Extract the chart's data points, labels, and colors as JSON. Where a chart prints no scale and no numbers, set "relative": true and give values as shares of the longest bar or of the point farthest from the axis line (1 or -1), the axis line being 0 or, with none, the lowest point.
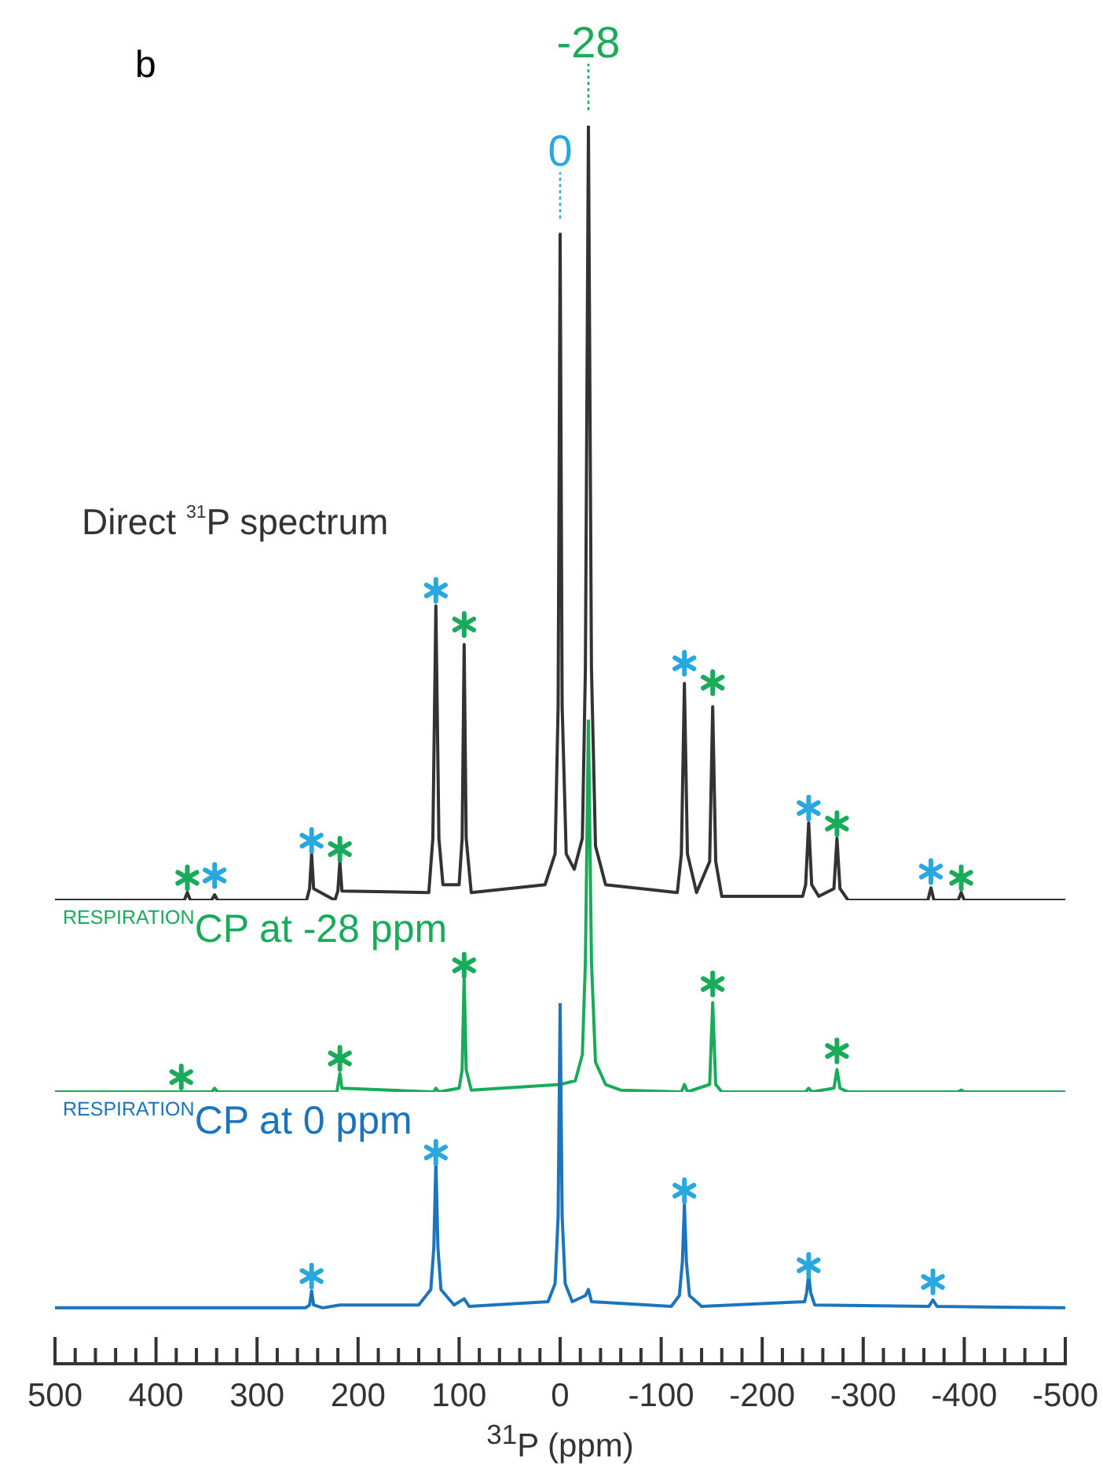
{
  "chart_data": [
    {
      "type": "line",
      "relative": true,
      "xlim": [
        500,
        -500
      ],
      "tick_labels": false,
      "series": [
        {
          "name": "Direct $^{31}$P spectrum",
          "color": "#333333",
          "x": [
            500,
            372,
            369,
            366,
            345,
            342,
            339,
            251,
            248,
            246,
            244,
            223,
            220,
            218,
            216,
            130,
            126,
            123,
            120,
            116,
            100,
            97,
            95,
            93,
            88,
            15,
            5,
            2,
            0,
            -2,
            -6,
            -14,
            -22,
            -25,
            -28,
            -31,
            -35,
            -45,
            -116,
            -120,
            -123,
            -126,
            -135,
            -148,
            -151,
            -154,
            -160,
            -240,
            -243,
            -246,
            -249,
            -256,
            -271,
            -274,
            -277,
            -285,
            -364,
            -367,
            -370,
            -394,
            -397,
            -400,
            -500
          ],
          "values": [
            0,
            0,
            0.01,
            0,
            0,
            0.007,
            0,
            0,
            0.015,
            0.06,
            0.015,
            0,
            0.012,
            0.05,
            0.012,
            0.01,
            0.08,
            0.38,
            0.08,
            0.02,
            0.02,
            0.08,
            0.33,
            0.08,
            0.01,
            0.02,
            0.06,
            0.25,
            0.86,
            0.25,
            0.06,
            0.04,
            0.08,
            0.3,
            1,
            0.3,
            0.07,
            0.02,
            0.01,
            0.06,
            0.28,
            0.06,
            0.01,
            0.05,
            0.25,
            0.05,
            0.005,
            0.005,
            0.02,
            0.1,
            0.02,
            0.005,
            0.015,
            0.08,
            0.015,
            0,
            0,
            0.016,
            0,
            0,
            0.01,
            0,
            0
          ]
        },
        {
          "type": "scatter",
          "marker": "cross",
          "color": "#29a8e0",
          "x": [
            342,
            246,
            123,
            -123,
            -246,
            -367
          ],
          "values": [
            0.032,
            0.077,
            0.4,
            0.306,
            0.119,
            0.037
          ]
        },
        {
          "type": "scatter",
          "marker": "cross",
          "color": "#1aab5a",
          "x": [
            369,
            218,
            95,
            -151,
            -274,
            -397
          ],
          "values": [
            0.029,
            0.066,
            0.356,
            0.281,
            0.099,
            0.029
          ]
        }
      ],
      "ref_lines": [
        {
          "axis": "x",
          "value": 0,
          "label": "0",
          "color": "#29a8e0",
          "line_style": "dotted"
        },
        {
          "axis": "x",
          "value": -28,
          "label": "-28",
          "color": "#1aab5a",
          "line_style": "dotted"
        }
      ],
      "annotations": [
        "b"
      ]
    },
    {
      "type": "line",
      "relative": true,
      "xlim": [
        500,
        -500
      ],
      "tick_labels": false,
      "series": [
        {
          "name": "$^{RESPIRATION}$CP at -28 ppm",
          "color": "#1aab5a",
          "x": [
            500,
            345,
            342,
            339,
            221,
            218,
            216,
            125,
            123,
            120,
            100,
            97,
            95,
            93,
            88,
            0,
            -15,
            -22,
            -25,
            -28,
            -31,
            -35,
            -45,
            -60,
            -120,
            -123,
            -126,
            -148,
            -151,
            -154,
            -160,
            -243,
            -246,
            -249,
            -271,
            -274,
            -277,
            -285,
            -394,
            -397,
            -400,
            -500
          ],
          "values": [
            0,
            0,
            0.01,
            0,
            0,
            0.05,
            0.01,
            0,
            0.01,
            0,
            0.01,
            0.06,
            0.31,
            0.06,
            0.005,
            0.02,
            0.03,
            0.1,
            0.35,
            1,
            0.35,
            0.08,
            0.02,
            0.005,
            0,
            0.02,
            0,
            0.02,
            0.24,
            0.02,
            0,
            0,
            0.01,
            0,
            0.01,
            0.06,
            0.01,
            0,
            0,
            0.005,
            0,
            0
          ]
        },
        {
          "type": "scatter",
          "marker": "cross",
          "color": "#1aab5a",
          "x": [
            375,
            218,
            95,
            -151,
            -274
          ],
          "values": [
            0.04,
            0.09,
            0.34,
            0.29,
            0.11
          ]
        }
      ]
    },
    {
      "type": "line",
      "relative": true,
      "xlim": [
        500,
        -500
      ],
      "tick_labels": "x",
      "xlabel": "$^{31}$P (ppm)",
      "xticks": [
        500,
        {
          "value": 480,
          "label": null
        },
        {
          "value": 460,
          "label": null
        },
        {
          "value": 440,
          "label": null
        },
        {
          "value": 420,
          "label": null
        },
        400,
        {
          "value": 380,
          "label": null
        },
        {
          "value": 360,
          "label": null
        },
        {
          "value": 340,
          "label": null
        },
        {
          "value": 320,
          "label": null
        },
        300,
        {
          "value": 280,
          "label": null
        },
        {
          "value": 260,
          "label": null
        },
        {
          "value": 240,
          "label": null
        },
        {
          "value": 220,
          "label": null
        },
        200,
        {
          "value": 180,
          "label": null
        },
        {
          "value": 160,
          "label": null
        },
        {
          "value": 140,
          "label": null
        },
        {
          "value": 120,
          "label": null
        },
        100,
        {
          "value": 80,
          "label": null
        },
        {
          "value": 60,
          "label": null
        },
        {
          "value": 40,
          "label": null
        },
        {
          "value": 20,
          "label": null
        },
        0,
        {
          "value": -20,
          "label": null
        },
        {
          "value": -40,
          "label": null
        },
        {
          "value": -60,
          "label": null
        },
        {
          "value": -80,
          "label": null
        },
        -100,
        {
          "value": -120,
          "label": null
        },
        {
          "value": -140,
          "label": null
        },
        {
          "value": -160,
          "label": null
        },
        {
          "value": -180,
          "label": null
        },
        -200,
        {
          "value": -220,
          "label": null
        },
        {
          "value": -240,
          "label": null
        },
        {
          "value": -260,
          "label": null
        },
        {
          "value": -280,
          "label": null
        },
        -300,
        {
          "value": -320,
          "label": null
        },
        {
          "value": -340,
          "label": null
        },
        {
          "value": -360,
          "label": null
        },
        {
          "value": -380,
          "label": null
        },
        -400,
        {
          "value": -420,
          "label": null
        },
        {
          "value": -440,
          "label": null
        },
        {
          "value": -460,
          "label": null
        },
        {
          "value": -480,
          "label": null
        },
        -500
      ],
      "series": [
        {
          "name": "$^{RESPIRATION}$CP at 0 ppm",
          "color": "#1c75bc",
          "x": [
            500,
            252,
            248,
            246,
            244,
            235,
            218,
            140,
            128,
            125,
            123,
            121,
            118,
            105,
            95,
            90,
            12,
            5,
            2,
            0,
            -2,
            -5,
            -12,
            -25,
            -28,
            -31,
            -110,
            -118,
            -121,
            -123,
            -125,
            -128,
            -140,
            -242,
            -244,
            -246,
            -248,
            -252,
            -365,
            -369,
            -373,
            -500
          ],
          "values": [
            0.155,
            0.155,
            0.163,
            0.202,
            0.163,
            0.155,
            0.163,
            0.163,
            0.206,
            0.324,
            0.561,
            0.324,
            0.206,
            0.163,
            0.18,
            0.159,
            0.172,
            0.222,
            0.408,
            1,
            0.408,
            0.222,
            0.172,
            0.189,
            0.206,
            0.172,
            0.159,
            0.189,
            0.282,
            0.442,
            0.282,
            0.189,
            0.159,
            0.172,
            0.197,
            0.248,
            0.197,
            0.163,
            0.159,
            0.177,
            0.159,
            0.155
          ]
        },
        {
          "type": "scatter",
          "marker": "cross",
          "color": "#29a8e0",
          "x": [
            246,
            123,
            -123,
            -246,
            -369
          ],
          "values": [
            0.243,
            0.586,
            0.48,
            0.273,
            0.227
          ]
        }
      ]
    }
  ]
}
